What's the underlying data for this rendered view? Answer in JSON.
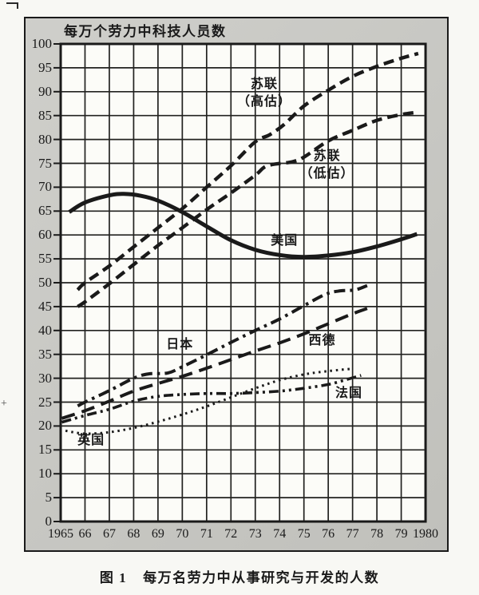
{
  "page": {
    "title": "每万个劳力中科技人员数",
    "caption_prefix": "图 1",
    "caption": "每万名劳力中从事研究与开发的人数"
  },
  "colors": {
    "ink": "#1a1a1a",
    "grid": "#222220",
    "panel-bg": "#c8c8c3",
    "plot-bg": "#fcfcf8",
    "page-bg": "#f8f8f4"
  },
  "chart_data": {
    "type": "line",
    "title": "每万个劳力中科技人员数",
    "caption": "图1  每万名劳力中从事研究与开发的人数",
    "xlabel": "",
    "ylabel": "每万个劳力中科技人员数",
    "grid": true,
    "x_range": [
      1965,
      1980
    ],
    "ylim": [
      0,
      100
    ],
    "y_ticks": [
      0,
      5,
      10,
      15,
      20,
      25,
      30,
      35,
      40,
      45,
      50,
      55,
      60,
      65,
      70,
      75,
      80,
      85,
      90,
      95,
      100
    ],
    "x_ticks": [
      "1965",
      "66",
      "67",
      "68",
      "69",
      "70",
      "71",
      "72",
      "73",
      "74",
      "75",
      "76",
      "77",
      "78",
      "79",
      "1980"
    ],
    "series": [
      {
        "id": "soviet-high",
        "name": "苏联（高估）",
        "label_lines": [
          "苏联",
          "（高估）"
        ],
        "label_anchor": [
          1973.37,
          89.6
        ],
        "pattern": "dashed",
        "points": [
          [
            1965.7,
            48.5
          ],
          [
            1966,
            50
          ],
          [
            1967,
            53.5
          ],
          [
            1968,
            57.5
          ],
          [
            1969,
            61.5
          ],
          [
            1970,
            65.5
          ],
          [
            1971,
            70
          ],
          [
            1972,
            74.5
          ],
          [
            1973,
            79.5
          ],
          [
            1973.6,
            81
          ],
          [
            1974.2,
            83.2
          ],
          [
            1975,
            87
          ],
          [
            1976,
            90.3
          ],
          [
            1977,
            93.2
          ],
          [
            1978,
            95.3
          ],
          [
            1979,
            97
          ],
          [
            1979.7,
            98
          ]
        ]
      },
      {
        "id": "soviet-low",
        "name": "苏联（低估）",
        "label_lines": [
          "苏联",
          "（低估）"
        ],
        "label_anchor": [
          1975.95,
          74.6
        ],
        "pattern": "dashed",
        "points": [
          [
            1965.7,
            45
          ],
          [
            1966,
            46
          ],
          [
            1967,
            49.8
          ],
          [
            1968,
            53.8
          ],
          [
            1969,
            57.8
          ],
          [
            1970,
            61.5
          ],
          [
            1971,
            65.3
          ],
          [
            1972,
            68.8
          ],
          [
            1973,
            72.5
          ],
          [
            1973.5,
            74.5
          ],
          [
            1974.5,
            75.3
          ],
          [
            1975,
            76.3
          ],
          [
            1976,
            79.7
          ],
          [
            1977,
            81.9
          ],
          [
            1978,
            84
          ],
          [
            1979,
            85.2
          ],
          [
            1979.7,
            85.7
          ]
        ]
      },
      {
        "id": "usa",
        "name": "美国",
        "label_lines": [
          "美国"
        ],
        "label_anchor": [
          1974.2,
          58.7
        ],
        "pattern": "solid",
        "points": [
          [
            1965.35,
            64.8
          ],
          [
            1966,
            66.8
          ],
          [
            1967,
            68.3
          ],
          [
            1967.6,
            68.6
          ],
          [
            1968.3,
            68.2
          ],
          [
            1969,
            67.2
          ],
          [
            1970,
            64.8
          ],
          [
            1971,
            61.8
          ],
          [
            1972,
            58.9
          ],
          [
            1973,
            56.9
          ],
          [
            1974,
            55.8
          ],
          [
            1975,
            55.4
          ],
          [
            1976,
            55.7
          ],
          [
            1977,
            56.4
          ],
          [
            1978,
            57.6
          ],
          [
            1979,
            59.1
          ],
          [
            1979.65,
            60.2
          ]
        ]
      },
      {
        "id": "japan",
        "name": "日本",
        "label_lines": [
          "日本"
        ],
        "label_anchor": [
          1969.9,
          37.0
        ],
        "pattern": "dash-dot",
        "points": [
          [
            1965.7,
            24.2
          ],
          [
            1966,
            25
          ],
          [
            1967,
            27.4
          ],
          [
            1968,
            30
          ],
          [
            1968.6,
            30.9
          ],
          [
            1969.4,
            31.1
          ],
          [
            1970,
            32.4
          ],
          [
            1971,
            34.9
          ],
          [
            1972,
            37.5
          ],
          [
            1973,
            40
          ],
          [
            1974,
            42.4
          ],
          [
            1975,
            45.2
          ],
          [
            1975.9,
            47.6
          ],
          [
            1976.5,
            48.3
          ],
          [
            1977.1,
            48.5
          ],
          [
            1977.6,
            49.4
          ]
        ]
      },
      {
        "id": "west-germany",
        "name": "西德",
        "label_lines": [
          "西德"
        ],
        "label_anchor": [
          1975.75,
          37.8
        ],
        "pattern": "long-dash",
        "points": [
          [
            1965.05,
            21.6
          ],
          [
            1966,
            23.2
          ],
          [
            1967,
            25.2
          ],
          [
            1968,
            27.3
          ],
          [
            1969,
            28.9
          ],
          [
            1970,
            30.4
          ],
          [
            1971,
            32.1
          ],
          [
            1972,
            33.9
          ],
          [
            1973,
            35.7
          ],
          [
            1974,
            37.4
          ],
          [
            1975,
            39.3
          ],
          [
            1976,
            41.4
          ],
          [
            1977,
            43.5
          ],
          [
            1977.6,
            44.6
          ]
        ]
      },
      {
        "id": "france",
        "name": "法国",
        "label_lines": [
          "法国"
        ],
        "label_anchor": [
          1976.85,
          26.8
        ],
        "pattern": "dash-dot-dot",
        "points": [
          [
            1965.05,
            20.8
          ],
          [
            1966,
            22.2
          ],
          [
            1967,
            23.5
          ],
          [
            1968,
            25.2
          ],
          [
            1969,
            26.2
          ],
          [
            1970,
            26.6
          ],
          [
            1971,
            26.8
          ],
          [
            1972,
            26.8
          ],
          [
            1973,
            27
          ],
          [
            1974,
            27.3
          ],
          [
            1975,
            27.9
          ],
          [
            1976,
            28.7
          ],
          [
            1976.8,
            29.8
          ],
          [
            1977.35,
            30.6
          ]
        ]
      },
      {
        "id": "uk",
        "name": "英国",
        "label_lines": [
          "英国"
        ],
        "label_anchor": [
          1966.25,
          16.9
        ],
        "pattern": "dotted",
        "points": [
          [
            1965.2,
            19
          ],
          [
            1966,
            18.4
          ],
          [
            1967,
            18.7
          ],
          [
            1968,
            19.6
          ],
          [
            1969,
            20.9
          ],
          [
            1970,
            22.4
          ],
          [
            1971,
            24.1
          ],
          [
            1972,
            26
          ],
          [
            1973,
            27.9
          ],
          [
            1974,
            29.6
          ],
          [
            1975,
            30.8
          ],
          [
            1976,
            31.5
          ],
          [
            1977,
            32
          ]
        ]
      }
    ]
  }
}
